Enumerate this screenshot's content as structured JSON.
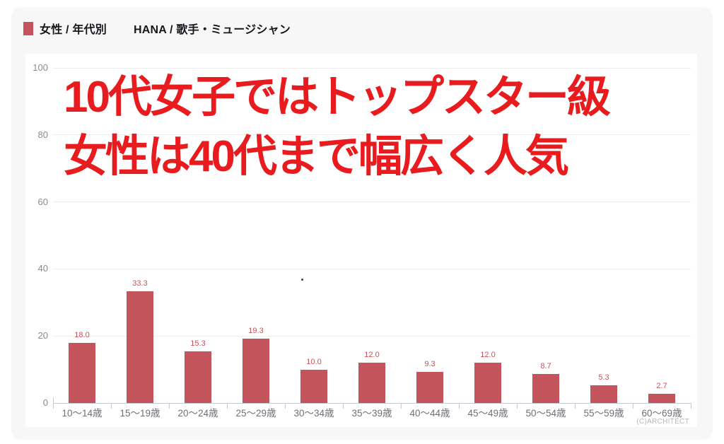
{
  "header": {
    "legend_swatch": "red-square",
    "legend_label": "女性 / 年代別",
    "title": "HANA / 歌手・ミュージシャン"
  },
  "chart_data": {
    "type": "bar",
    "title": "HANA / 歌手・ミュージシャン",
    "series_label": "女性 / 年代別",
    "categories": [
      "10〜14歳",
      "15〜19歳",
      "20〜24歳",
      "25〜29歳",
      "30〜34歳",
      "35〜39歳",
      "40〜44歳",
      "45〜49歳",
      "50〜54歳",
      "55〜59歳",
      "60〜69歳"
    ],
    "values": [
      18.0,
      33.3,
      15.3,
      19.3,
      10.0,
      12.0,
      9.3,
      12.0,
      8.7,
      5.3,
      2.7
    ],
    "value_label_format": "one-decimal",
    "xlabel": "",
    "ylabel": "",
    "ylim": [
      0,
      100
    ],
    "yticks": [
      0,
      20,
      40,
      60,
      80,
      100
    ],
    "grid": true,
    "legend_position": "top-left-outside",
    "bar_color": "#c4545b",
    "annotations": [
      "10代女子ではトップスター級",
      "女性は40代まで幅広く人気"
    ]
  },
  "footer": {
    "copyright": "(C)ARCHITECT"
  },
  "colors": {
    "panel_bg": "#f7f7f8",
    "card_bg": "#ffffff",
    "header_text": "#17181c",
    "annotation": "#e81b1e",
    "grid": "#ececed",
    "axis": "#c3ccd6",
    "xlabel": "#6e7075",
    "ylabel": "#898b8e",
    "copyright": "#b4b6b8"
  }
}
